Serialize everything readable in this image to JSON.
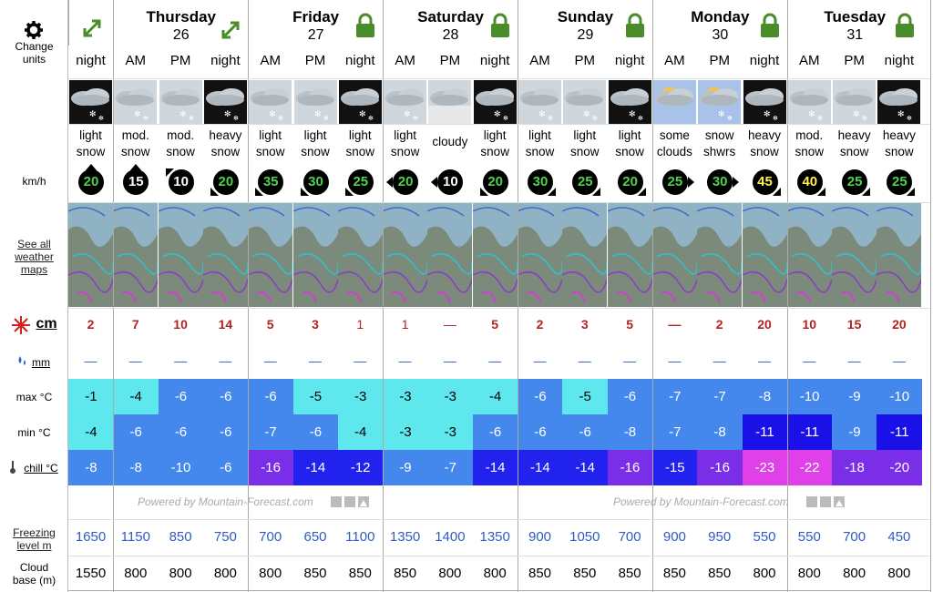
{
  "labels": {
    "change_units": "Change units",
    "wind_unit": "km/h",
    "see_all_maps": "See all weather maps",
    "snow_unit": "cm",
    "rain_unit": "mm",
    "max_temp": "max °C",
    "min_temp": "min °C",
    "chill": "chill °C",
    "freezing_level": "Freezing level m",
    "cloud_base": "Cloud base (m)"
  },
  "powered_by": "Powered by Mountain-Forecast.com",
  "colors": {
    "green_icon": "#4a8c2a",
    "snow_red": "#b22222",
    "blue_value": "#2f5bc4",
    "wind_green": "#4fd04f",
    "wind_white": "#ffffff",
    "wind_yellow": "#ffee55"
  },
  "days": [
    {
      "name": "",
      "num": "",
      "icon": "expand-icon"
    },
    {
      "name": "Thursday",
      "num": "26",
      "icon": "expand-icon"
    },
    {
      "name": "Friday",
      "num": "27",
      "icon": "lock-icon"
    },
    {
      "name": "Saturday",
      "num": "28",
      "icon": "lock-icon"
    },
    {
      "name": "Sunday",
      "num": "29",
      "icon": "lock-icon"
    },
    {
      "name": "Monday",
      "num": "30",
      "icon": "lock-icon"
    },
    {
      "name": "Tuesday",
      "num": "31",
      "icon": "lock-icon"
    }
  ],
  "columns": [
    {
      "period": "night",
      "sky": "night-snow",
      "s1": "light",
      "s2": "snow",
      "wind": "20",
      "wc": "green",
      "dir": "up",
      "snow": "2",
      "sl": false,
      "rain": "—",
      "max": "-1",
      "maxc": "#5ee8ee",
      "min": "-4",
      "minc": "#5ee8ee",
      "chill": "-8",
      "chc": "#4488ee",
      "fz": "1650",
      "cb": "1550"
    },
    {
      "period": "AM",
      "sky": "day-snow",
      "s1": "mod.",
      "s2": "snow",
      "wind": "15",
      "wc": "white",
      "dir": "up",
      "snow": "7",
      "sl": false,
      "rain": "—",
      "max": "-4",
      "maxc": "#5ee8ee",
      "min": "-6",
      "minc": "#4488ee",
      "chill": "-8",
      "chc": "#4488ee",
      "fz": "1150",
      "cb": "800"
    },
    {
      "period": "PM",
      "sky": "day-snow",
      "s1": "mod.",
      "s2": "snow",
      "wind": "10",
      "wc": "white",
      "dir": "upleft",
      "snow": "10",
      "sl": false,
      "rain": "—",
      "max": "-6",
      "maxc": "#4488ee",
      "min": "-6",
      "minc": "#4488ee",
      "chill": "-10",
      "chc": "#4488ee",
      "fz": "850",
      "cb": "800"
    },
    {
      "period": "night",
      "sky": "night-snow",
      "s1": "heavy",
      "s2": "snow",
      "wind": "20",
      "wc": "green",
      "dir": "downleft",
      "snow": "14",
      "sl": false,
      "rain": "—",
      "max": "-6",
      "maxc": "#4488ee",
      "min": "-6",
      "minc": "#4488ee",
      "chill": "-6",
      "chc": "#4488ee",
      "fz": "750",
      "cb": "800"
    },
    {
      "period": "AM",
      "sky": "day-snow",
      "s1": "light",
      "s2": "snow",
      "wind": "35",
      "wc": "green",
      "dir": "downleft",
      "snow": "5",
      "sl": false,
      "rain": "—",
      "max": "-6",
      "maxc": "#4488ee",
      "min": "-7",
      "minc": "#4488ee",
      "chill": "-16",
      "chc": "#7a2ee8",
      "fz": "700",
      "cb": "800"
    },
    {
      "period": "PM",
      "sky": "day-snow",
      "s1": "light",
      "s2": "snow",
      "wind": "30",
      "wc": "green",
      "dir": "downleft",
      "snow": "3",
      "sl": false,
      "rain": "—",
      "max": "-5",
      "maxc": "#5ee8ee",
      "min": "-6",
      "minc": "#4488ee",
      "chill": "-14",
      "chc": "#2222ee",
      "fz": "650",
      "cb": "850"
    },
    {
      "period": "night",
      "sky": "night-snow",
      "s1": "light",
      "s2": "snow",
      "wind": "25",
      "wc": "green",
      "dir": "downleft",
      "snow": "1",
      "sl": true,
      "rain": "—",
      "max": "-3",
      "maxc": "#5ee8ee",
      "min": "-4",
      "minc": "#5ee8ee",
      "chill": "-12",
      "chc": "#2222ee",
      "fz": "1100",
      "cb": "850"
    },
    {
      "period": "AM",
      "sky": "day-snow",
      "s1": "light",
      "s2": "snow",
      "wind": "20",
      "wc": "green",
      "dir": "left",
      "snow": "1",
      "sl": true,
      "rain": "—",
      "max": "-3",
      "maxc": "#5ee8ee",
      "min": "-3",
      "minc": "#5ee8ee",
      "chill": "-9",
      "chc": "#4488ee",
      "fz": "1350",
      "cb": "850"
    },
    {
      "period": "PM",
      "sky": "cloudy",
      "s1": "cloudy",
      "s2": "",
      "wind": "10",
      "wc": "white",
      "dir": "left",
      "snow": "—",
      "sl": true,
      "rain": "—",
      "max": "-3",
      "maxc": "#5ee8ee",
      "min": "-3",
      "minc": "#5ee8ee",
      "chill": "-7",
      "chc": "#4488ee",
      "fz": "1400",
      "cb": "800"
    },
    {
      "period": "night",
      "sky": "night-snow",
      "s1": "light",
      "s2": "snow",
      "wind": "20",
      "wc": "green",
      "dir": "downleft",
      "snow": "5",
      "sl": false,
      "rain": "—",
      "max": "-4",
      "maxc": "#5ee8ee",
      "min": "-6",
      "minc": "#4488ee",
      "chill": "-14",
      "chc": "#2222ee",
      "fz": "1350",
      "cb": "800"
    },
    {
      "period": "AM",
      "sky": "day-snow",
      "s1": "light",
      "s2": "snow",
      "wind": "30",
      "wc": "green",
      "dir": "downright",
      "snow": "2",
      "sl": false,
      "rain": "—",
      "max": "-6",
      "maxc": "#4488ee",
      "min": "-6",
      "minc": "#4488ee",
      "chill": "-14",
      "chc": "#2222ee",
      "fz": "900",
      "cb": "850"
    },
    {
      "period": "PM",
      "sky": "day-snow",
      "s1": "light",
      "s2": "snow",
      "wind": "25",
      "wc": "green",
      "dir": "downright",
      "snow": "3",
      "sl": false,
      "rain": "—",
      "max": "-5",
      "maxc": "#5ee8ee",
      "min": "-6",
      "minc": "#4488ee",
      "chill": "-14",
      "chc": "#2222ee",
      "fz": "1050",
      "cb": "850"
    },
    {
      "period": "night",
      "sky": "night-snow",
      "s1": "light",
      "s2": "snow",
      "wind": "20",
      "wc": "green",
      "dir": "downright",
      "snow": "5",
      "sl": false,
      "rain": "—",
      "max": "-6",
      "maxc": "#4488ee",
      "min": "-8",
      "minc": "#4488ee",
      "chill": "-16",
      "chc": "#7a2ee8",
      "fz": "700",
      "cb": "850"
    },
    {
      "period": "AM",
      "sky": "sun-clouds",
      "s1": "some",
      "s2": "clouds",
      "wind": "25",
      "wc": "green",
      "dir": "right",
      "snow": "—",
      "sl": false,
      "rain": "—",
      "max": "-7",
      "maxc": "#4488ee",
      "min": "-7",
      "minc": "#4488ee",
      "chill": "-15",
      "chc": "#2222ee",
      "fz": "900",
      "cb": "850"
    },
    {
      "period": "PM",
      "sky": "sun-snow",
      "s1": "snow",
      "s2": "shwrs",
      "wind": "30",
      "wc": "green",
      "dir": "right",
      "snow": "2",
      "sl": false,
      "rain": "—",
      "max": "-7",
      "maxc": "#4488ee",
      "min": "-8",
      "minc": "#4488ee",
      "chill": "-16",
      "chc": "#7a2ee8",
      "fz": "950",
      "cb": "850"
    },
    {
      "period": "night",
      "sky": "night-snow",
      "s1": "heavy",
      "s2": "snow",
      "wind": "45",
      "wc": "yellow",
      "dir": "downright",
      "snow": "20",
      "sl": false,
      "rain": "—",
      "max": "-8",
      "maxc": "#4488ee",
      "min": "-11",
      "minc": "#1a10e8",
      "chill": "-23",
      "chc": "#e040e8",
      "fz": "550",
      "cb": "800"
    },
    {
      "period": "AM",
      "sky": "day-snow",
      "s1": "mod.",
      "s2": "snow",
      "wind": "40",
      "wc": "yellow",
      "dir": "downright",
      "snow": "10",
      "sl": false,
      "rain": "—",
      "max": "-10",
      "maxc": "#4488ee",
      "min": "-11",
      "minc": "#1a10e8",
      "chill": "-22",
      "chc": "#e040e8",
      "fz": "550",
      "cb": "800"
    },
    {
      "period": "PM",
      "sky": "day-snow",
      "s1": "heavy",
      "s2": "snow",
      "wind": "25",
      "wc": "green",
      "dir": "downright",
      "snow": "15",
      "sl": false,
      "rain": "—",
      "max": "-9",
      "maxc": "#4488ee",
      "min": "-9",
      "minc": "#4488ee",
      "chill": "-18",
      "chc": "#7a2ee8",
      "fz": "700",
      "cb": "800"
    },
    {
      "period": "night",
      "sky": "night-snow",
      "s1": "heavy",
      "s2": "snow",
      "wind": "25",
      "wc": "green",
      "dir": "downright",
      "snow": "20",
      "sl": false,
      "rain": "—",
      "max": "-10",
      "maxc": "#4488ee",
      "min": "-11",
      "minc": "#1a10e8",
      "chill": "-20",
      "chc": "#7a2ee8",
      "fz": "450",
      "cb": "800"
    }
  ]
}
